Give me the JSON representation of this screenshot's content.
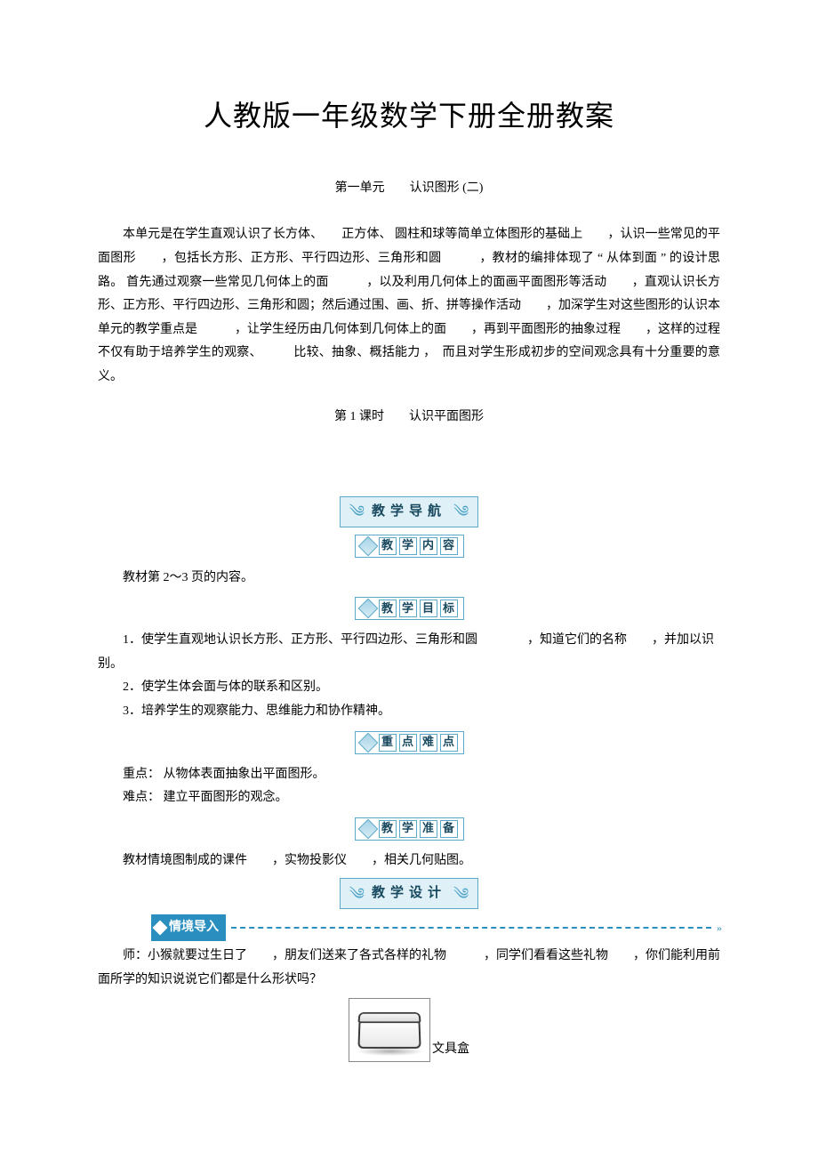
{
  "title": "人教版一年级数学下册全册教案",
  "subtitle": "第一单元　　认识图形 (二)",
  "intro": "本单元是在学生直观认识了长方体、　　正方体、 圆柱和球等简单立体图形的基础上　　，认识一些常见的平面图形　　，包括长方形、正方形、平行四边形、三角形和圆　　　，教材的编排体现了 “ 从体到面 ” 的设计思路。 首先通过观察一些常见几何体上的面　　　，以及利用几何体上的面画平面图形等活动　　，直观认识长方形、正方形、平行四边形、三角形和圆；然后通过围、画、折、拼等操作活动　　，加深学生对这些图形的认识本单元的教学重点是　　　，让学生经历由几何体到几何体上的面　　，再到平面图形的抽象过程　　，这样的过程不仅有助于培养学生的观察、　　　比较、抽象、概括能力 ，　而且对学生形成初步的空间观念具有十分重要的意义。",
  "lesson_label": "第 1 课时　　认识平面图形",
  "banner": {
    "nav": "教学导航",
    "design": "教学设计"
  },
  "box": {
    "content": [
      "教",
      "学",
      "内",
      "容"
    ],
    "goal": [
      "教",
      "学",
      "目",
      "标"
    ],
    "keypoints": [
      "重",
      "点",
      "难",
      "点"
    ],
    "prep": [
      "教",
      "学",
      "准",
      "备"
    ]
  },
  "content_line": "教材第 2～3 页的内容。",
  "goals": {
    "g1": "1．使学生直观地认识长方形、正方形、平行四边形、三角形和圆　　　　，知道它们的名称　　，并加以识别。",
    "g2": "2．使学生体会面与体的联系和区别。",
    "g3": "3．培养学生的观察能力、思维能力和协作精神。"
  },
  "keypoints": {
    "zd": "重点： 从物体表面抽象出平面图形。",
    "nd": "难点： 建立平面图形的观念。"
  },
  "prep_line": "教材情境图制成的课件　　，实物投影仪　　，相关几何贴图。",
  "situation_badge": "情境导入",
  "dialog": "师：小猴就要过生日了　　，朋友们送来了各式各样的礼物　　　，同学们看看这些礼物　　，你们能利用前面所学的知识说说它们都是什么形状吗？",
  "object_label": "文具盒",
  "colors": {
    "banner_bg": "#dff1f7",
    "banner_border": "#5aa9c9",
    "banner_text": "#18495f",
    "badge_bg": "#2a8fbf",
    "dash": "#2a8fbf"
  }
}
